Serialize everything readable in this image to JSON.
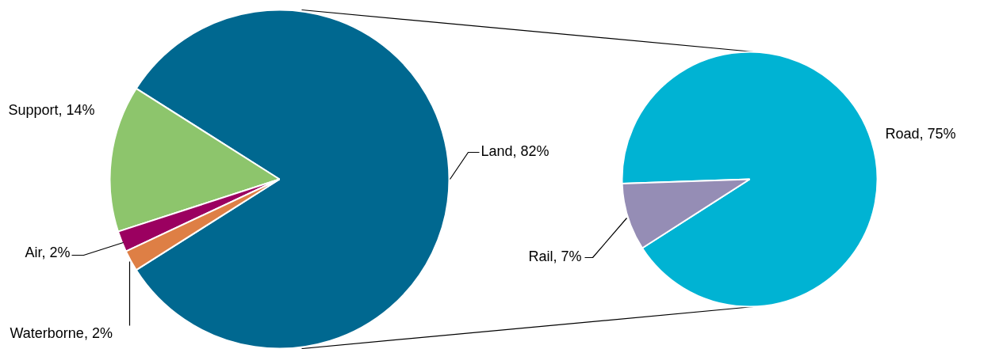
{
  "chart_data": [
    {
      "type": "pie",
      "categories": [
        "Land",
        "Support",
        "Air",
        "Waterborne"
      ],
      "values": [
        82,
        14,
        2,
        2
      ],
      "colors": [
        "#006890",
        "#8dc56c",
        "#9b0060",
        "#de7f45"
      ],
      "value_labels": [
        "82%",
        "14%",
        "2%",
        "2%"
      ]
    },
    {
      "type": "pie",
      "categories": [
        "Road",
        "Rail"
      ],
      "values": [
        75,
        7
      ],
      "colors": [
        "#00b3d3",
        "#958db5"
      ],
      "value_labels": [
        "75%",
        "7%"
      ]
    }
  ]
}
